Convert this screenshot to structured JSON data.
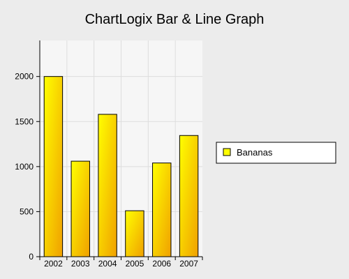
{
  "chart_data": {
    "type": "bar",
    "title": "ChartLogix Bar & Line Graph",
    "categories": [
      "2002",
      "2003",
      "2004",
      "2005",
      "2006",
      "2007"
    ],
    "series": [
      {
        "name": "Bananas",
        "values": [
          2000,
          1060,
          1580,
          510,
          1040,
          1345
        ]
      }
    ],
    "xlabel": "",
    "ylabel": "",
    "ylim": [
      0,
      2400
    ],
    "yticks": [
      0,
      500,
      1000,
      1500,
      2000
    ],
    "grid": true,
    "legend_position": "right",
    "colors": {
      "background": "#ececec",
      "plot_background": "#f6f6f6",
      "grid": "#dddddd",
      "bar_light": "#ffff00",
      "bar_dark": "#f0a000",
      "bar_border": "#000000"
    }
  }
}
